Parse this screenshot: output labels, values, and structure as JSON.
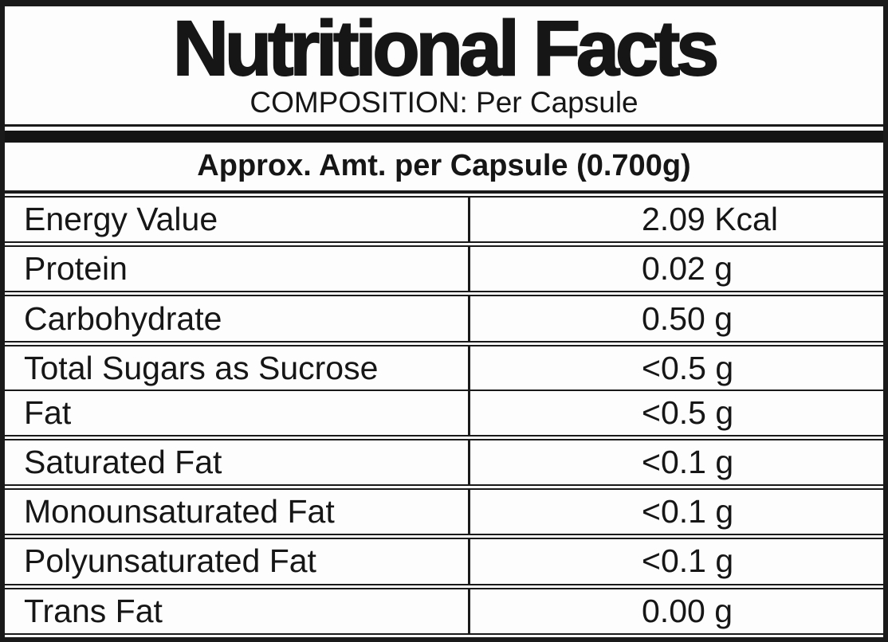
{
  "label": {
    "title": "Nutritional Facts",
    "subtitle": "COMPOSITION: Per Capsule",
    "column_header": "Approx. Amt. per Capsule (0.700g)",
    "rows": [
      {
        "name": "Energy Value",
        "value": "2.09 Kcal"
      },
      {
        "name": "Protein",
        "value": "0.02 g"
      },
      {
        "name": "Carbohydrate",
        "value": "0.50 g"
      },
      {
        "name": "Total Sugars as Sucrose",
        "value": "<0.5 g"
      },
      {
        "name": "Fat",
        "value": "<0.5 g"
      },
      {
        "name": "Saturated Fat",
        "value": "<0.1 g"
      },
      {
        "name": "Monounsaturated Fat",
        "value": "<0.1 g"
      },
      {
        "name": "Polyunsaturated Fat",
        "value": "<0.1 g"
      },
      {
        "name": "Trans Fat",
        "value": "0.00 g"
      }
    ],
    "colors": {
      "background": "#fdfdfd",
      "text": "#161616",
      "border": "#1a1a1a",
      "divider_bar": "#141414"
    }
  }
}
